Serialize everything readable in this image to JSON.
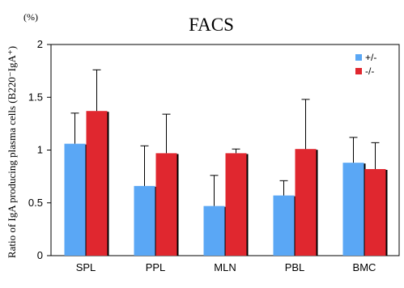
{
  "chart_data": {
    "type": "bar",
    "title": "FACS",
    "unit_label": "(%)",
    "ylabel": "Ratio of IgA producing plasma cells (B220⁻IgA⁺)",
    "xlabel": "",
    "categories": [
      "SPL",
      "PPL",
      "MLN",
      "PBL",
      "BMC"
    ],
    "series": [
      {
        "name": "+/-",
        "color": "#5aa7f5",
        "values": [
          1.06,
          0.66,
          0.47,
          0.57,
          0.88
        ],
        "error": [
          0.29,
          0.38,
          0.29,
          0.14,
          0.24
        ]
      },
      {
        "name": "-/-",
        "color": "#e0272f",
        "values": [
          1.37,
          0.97,
          0.97,
          1.01,
          0.82
        ],
        "error": [
          0.39,
          0.37,
          0.04,
          0.47,
          0.25
        ]
      }
    ],
    "ylim": [
      0,
      2
    ],
    "yticks": [
      0,
      0.5,
      1,
      1.5,
      2
    ],
    "ytick_labels": [
      "0",
      "0.5",
      "1",
      "1.5",
      "2"
    ],
    "legend_position": "top-right",
    "grid": false
  }
}
